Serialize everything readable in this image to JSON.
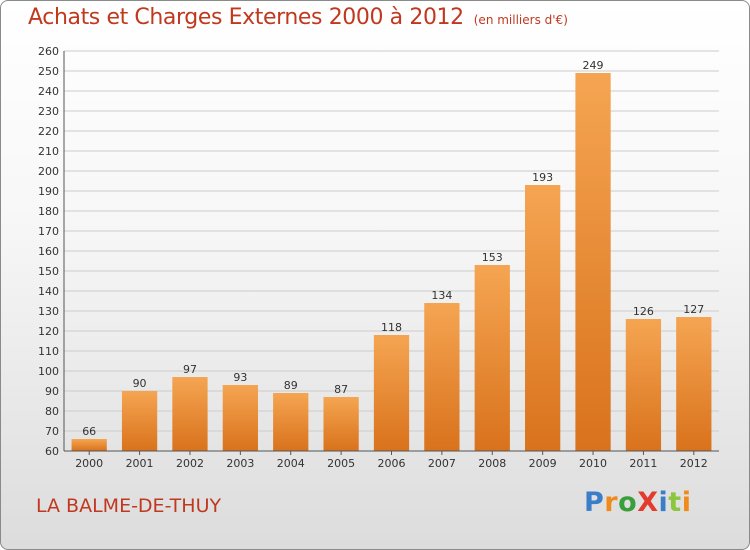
{
  "title": "Achats et Charges Externes 2000 à 2012",
  "unit": "(en milliers d'€)",
  "commune": "LA BALME-DE-THUY",
  "logo": {
    "text": "Proxiti",
    "letters": [
      {
        "ch": "P",
        "color": "#3a7dc9"
      },
      {
        "ch": "r",
        "color": "#f08a1c"
      },
      {
        "ch": "o",
        "color": "#3a9e3a"
      },
      {
        "ch": "X",
        "color": "#e33b2c"
      },
      {
        "ch": "i",
        "color": "#3a7dc9"
      },
      {
        "ch": "t",
        "color": "#8cc63f"
      },
      {
        "ch": "i",
        "color": "#f08a1c"
      }
    ]
  },
  "colors": {
    "title": "#c0391f",
    "bar_top": "#f5a552",
    "bar_bottom": "#d9721c",
    "grid": "#cccccc",
    "axis": "#555555"
  },
  "chart_data": {
    "type": "bar",
    "categories": [
      "2000",
      "2001",
      "2002",
      "2003",
      "2004",
      "2005",
      "2006",
      "2007",
      "2008",
      "2009",
      "2010",
      "2011",
      "2012"
    ],
    "values": [
      66,
      90,
      97,
      93,
      89,
      87,
      118,
      134,
      153,
      193,
      249,
      126,
      127
    ],
    "ylim": [
      60,
      260
    ],
    "yticks": [
      60,
      70,
      80,
      90,
      100,
      110,
      120,
      130,
      140,
      150,
      160,
      170,
      180,
      190,
      200,
      210,
      220,
      230,
      240,
      250,
      260
    ],
    "grid": true,
    "data_labels": true
  }
}
